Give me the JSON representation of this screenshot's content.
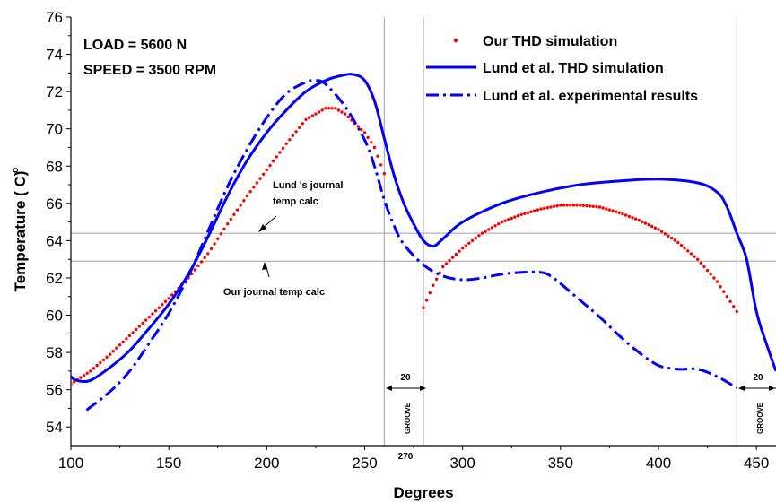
{
  "chart_data": {
    "type": "line",
    "xlabel": "Degrees",
    "ylabel": "Temperature ( C)",
    "ylabel_sup": "o",
    "xlim": [
      100,
      460
    ],
    "ylim": [
      53,
      76
    ],
    "x_ticks": [
      "100",
      "150",
      "200",
      "250",
      "300",
      "350",
      "400",
      "450"
    ],
    "y_ticks": [
      "54",
      "56",
      "58",
      "60",
      "62",
      "64",
      "66",
      "68",
      "70",
      "72",
      "74",
      "76"
    ],
    "grid": false,
    "legend_position": "top-right",
    "colors": {
      "red": "#ff0000",
      "blue": "#0000ff",
      "ref_line": "#a0a0a0"
    },
    "series": [
      {
        "name": "Our THD simulation",
        "style": "dots",
        "color": "#ff0000",
        "segments": [
          [
            [
              100,
              56.3
            ],
            [
              110,
              57.0
            ],
            [
              120,
              57.9
            ],
            [
              130,
              58.9
            ],
            [
              140,
              59.9
            ],
            [
              150,
              60.9
            ],
            [
              160,
              62.0
            ],
            [
              170,
              63.3
            ],
            [
              180,
              64.9
            ],
            [
              190,
              66.4
            ],
            [
              200,
              67.8
            ],
            [
              210,
              69.2
            ],
            [
              220,
              70.5
            ],
            [
              230,
              71.1
            ],
            [
              235,
              71.1
            ],
            [
              240,
              70.8
            ],
            [
              250,
              69.8
            ],
            [
              255,
              69.0
            ],
            [
              260,
              67.6
            ]
          ],
          [
            [
              280,
              60.4
            ],
            [
              285,
              61.6
            ],
            [
              290,
              62.6
            ],
            [
              300,
              63.6
            ],
            [
              310,
              64.4
            ],
            [
              320,
              65.0
            ],
            [
              330,
              65.4
            ],
            [
              340,
              65.7
            ],
            [
              350,
              65.9
            ],
            [
              360,
              65.9
            ],
            [
              370,
              65.8
            ],
            [
              380,
              65.5
            ],
            [
              390,
              65.1
            ],
            [
              400,
              64.6
            ],
            [
              410,
              63.9
            ],
            [
              420,
              63.0
            ],
            [
              430,
              61.8
            ],
            [
              440,
              60.2
            ]
          ]
        ]
      },
      {
        "name": "Lund et al. THD simulation",
        "style": "solid",
        "color": "#0000ff",
        "segments": [
          [
            [
              100,
              56.7
            ],
            [
              103,
              56.5
            ],
            [
              110,
              56.5
            ],
            [
              120,
              57.2
            ],
            [
              130,
              58.1
            ],
            [
              140,
              59.3
            ],
            [
              150,
              60.6
            ],
            [
              160,
              62.2
            ],
            [
              170,
              64.2
            ],
            [
              180,
              66.4
            ],
            [
              190,
              68.3
            ],
            [
              200,
              69.8
            ],
            [
              210,
              71.0
            ],
            [
              220,
              72.0
            ],
            [
              230,
              72.6
            ],
            [
              240,
              72.9
            ],
            [
              245,
              72.9
            ],
            [
              250,
              72.6
            ],
            [
              255,
              71.5
            ],
            [
              260,
              69.5
            ],
            [
              265,
              67.5
            ],
            [
              270,
              66.0
            ],
            [
              275,
              64.9
            ],
            [
              280,
              64.0
            ],
            [
              285,
              63.7
            ],
            [
              290,
              64.1
            ],
            [
              300,
              65.0
            ],
            [
              320,
              66.0
            ],
            [
              340,
              66.6
            ],
            [
              360,
              67.0
            ],
            [
              380,
              67.2
            ],
            [
              400,
              67.3
            ],
            [
              420,
              67.1
            ],
            [
              430,
              66.6
            ],
            [
              435,
              65.8
            ],
            [
              440,
              64.4
            ],
            [
              445,
              63.0
            ],
            [
              450,
              60.2
            ],
            [
              455,
              58.5
            ],
            [
              460,
              57.0
            ]
          ]
        ]
      },
      {
        "name": "Lund et al. experimental results",
        "style": "dashdot",
        "color": "#0000ff",
        "segments": [
          [
            [
              108,
              54.9
            ],
            [
              120,
              55.9
            ],
            [
              130,
              57.0
            ],
            [
              140,
              58.5
            ],
            [
              150,
              60.1
            ],
            [
              160,
              62.1
            ],
            [
              170,
              64.5
            ],
            [
              180,
              66.9
            ],
            [
              190,
              68.9
            ],
            [
              200,
              70.6
            ],
            [
              210,
              71.9
            ],
            [
              220,
              72.5
            ],
            [
              225,
              72.6
            ],
            [
              230,
              72.4
            ],
            [
              240,
              71.2
            ],
            [
              250,
              69.4
            ],
            [
              255,
              68.0
            ],
            [
              260,
              66.2
            ],
            [
              265,
              64.8
            ],
            [
              270,
              63.8
            ],
            [
              280,
              62.7
            ],
            [
              290,
              62.1
            ],
            [
              300,
              61.9
            ],
            [
              310,
              62.0
            ],
            [
              320,
              62.2
            ],
            [
              330,
              62.3
            ],
            [
              340,
              62.3
            ],
            [
              345,
              62.1
            ],
            [
              350,
              61.7
            ],
            [
              360,
              60.8
            ],
            [
              370,
              59.9
            ],
            [
              380,
              58.9
            ],
            [
              390,
              58.0
            ],
            [
              400,
              57.3
            ],
            [
              410,
              57.1
            ],
            [
              420,
              57.1
            ],
            [
              430,
              56.7
            ],
            [
              440,
              56.1
            ]
          ]
        ]
      }
    ],
    "reference_lines": {
      "vertical_x": [
        260,
        280,
        440
      ],
      "horizontal_y": [
        64.4,
        62.9
      ]
    },
    "annotations": {
      "load": "LOAD  = 5600 N",
      "speed": "SPEED = 3500 RPM",
      "lund_calc_line1": "Lund 's journal",
      "lund_calc_line2": "temp calc",
      "our_calc": "Our journal temp calc",
      "groove_width_1": "20",
      "groove_width_2": "20",
      "groove_label_1": "GROOVE",
      "groove_label_2": "GROOVE",
      "label_270": "270"
    }
  }
}
